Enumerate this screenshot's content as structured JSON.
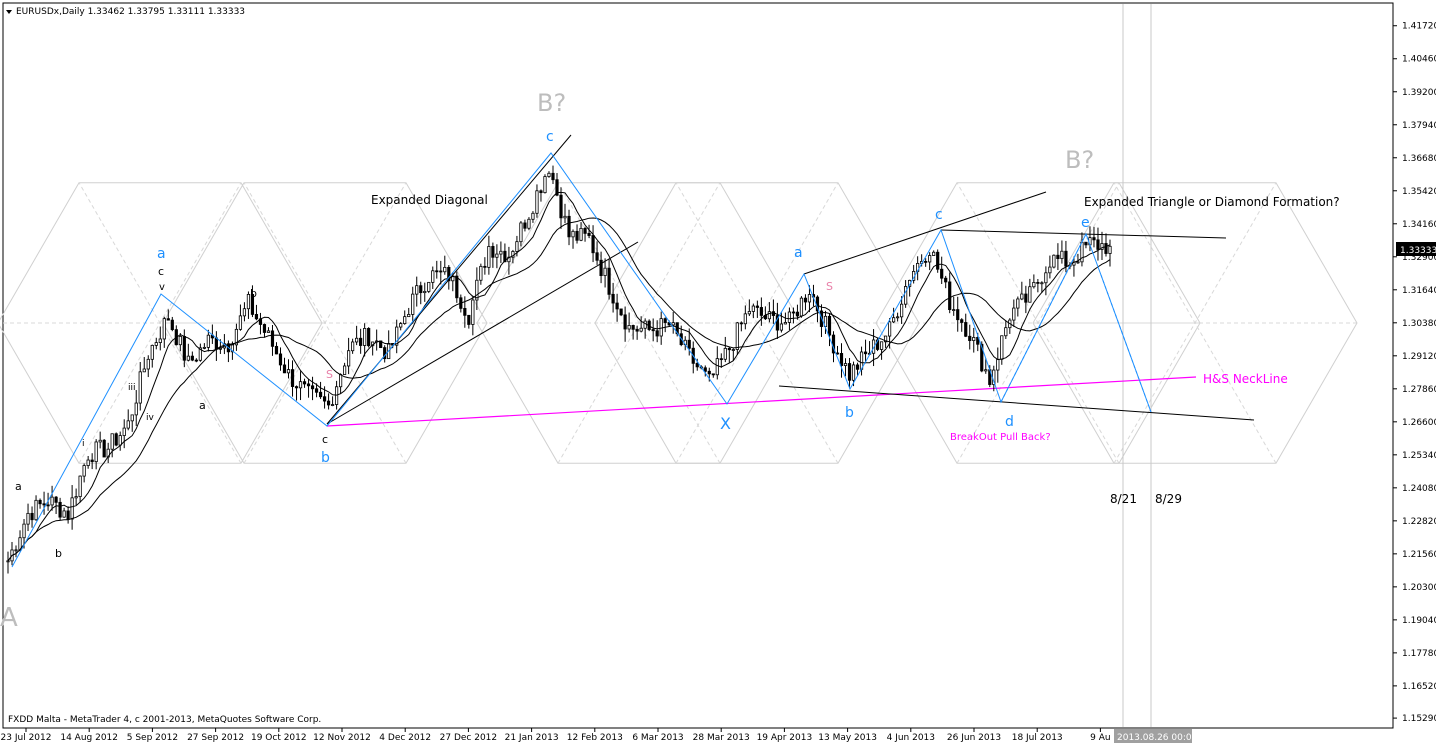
{
  "window": {
    "header": "EURUSDx,Daily  1.33462 1.33795 1.33111 1.33333",
    "footer": "FXDD Malta - MetaTrader 4, c 2001-2013, MetaQuotes Software Corp.",
    "current_price_label": "1.33333",
    "cursor_date_label": "2013.08.26 00:00"
  },
  "colors": {
    "background": "#ffffff",
    "candle": "#000000",
    "wave_blue": "#1e90ff",
    "neckline": "#ff00ff",
    "grid_gray": "#c8c8c8",
    "label_gray": "#bdbdbd",
    "shoulder_pink": "#e87fa8"
  },
  "chart_data": {
    "type": "candlestick",
    "symbol": "EURUSDx",
    "timeframe": "Daily",
    "ohlc": {
      "open": 1.33462,
      "high": 1.33795,
      "low": 1.33111,
      "close": 1.33333
    },
    "ylim": [
      1.1495,
      1.4255
    ],
    "y_ticks": [
      "1.41720",
      "1.40460",
      "1.39200",
      "1.37940",
      "1.36680",
      "1.35420",
      "1.34160",
      "1.32900",
      "1.31640",
      "1.30380",
      "1.29120",
      "1.27860",
      "1.26600",
      "1.25340",
      "1.24080",
      "1.22820",
      "1.21560",
      "1.20300",
      "1.19040",
      "1.17780",
      "1.16520",
      "1.15290"
    ],
    "x_ticks": [
      "23 Jul 2012",
      "14 Aug 2012",
      "5 Sep 2012",
      "27 Sep 2012",
      "19 Oct 2012",
      "12 Nov 2012",
      "4 Dec 2012",
      "27 Dec 2012",
      "21 Jan 2013",
      "12 Feb 2013",
      "6 Mar 2013",
      "28 Mar 2013",
      "19 Apr 2013",
      "13 May 2013",
      "4 Jun 2013",
      "26 Jun 2013",
      "18 Jul 2013",
      "9 Au"
    ],
    "series": [
      {
        "kind": "close",
        "points": [
          [
            "2012-07-23",
            1.213
          ],
          [
            "2012-07-30",
            1.231
          ],
          [
            "2012-08-06",
            1.236
          ],
          [
            "2012-08-13",
            1.231
          ],
          [
            "2012-08-20",
            1.254
          ],
          [
            "2012-08-27",
            1.256
          ],
          [
            "2012-09-03",
            1.265
          ],
          [
            "2012-09-10",
            1.292
          ],
          [
            "2012-09-17",
            1.306
          ],
          [
            "2012-09-24",
            1.288
          ],
          [
            "2012-10-01",
            1.297
          ],
          [
            "2012-10-08",
            1.296
          ],
          [
            "2012-10-15",
            1.311
          ],
          [
            "2012-10-22",
            1.298
          ],
          [
            "2012-10-29",
            1.284
          ],
          [
            "2012-11-05",
            1.276
          ],
          [
            "2012-11-12",
            1.272
          ],
          [
            "2012-11-19",
            1.294
          ],
          [
            "2012-11-26",
            1.299
          ],
          [
            "2012-12-03",
            1.292
          ],
          [
            "2012-12-10",
            1.31
          ],
          [
            "2012-12-17",
            1.322
          ],
          [
            "2012-12-24",
            1.322
          ],
          [
            "2012-12-31",
            1.307
          ],
          [
            "2013-01-07",
            1.333
          ],
          [
            "2013-01-14",
            1.33
          ],
          [
            "2013-01-21",
            1.346
          ],
          [
            "2013-01-28",
            1.364
          ],
          [
            "2013-02-04",
            1.337
          ],
          [
            "2013-02-11",
            1.336
          ],
          [
            "2013-02-18",
            1.318
          ],
          [
            "2013-02-25",
            1.302
          ],
          [
            "2013-03-04",
            1.301
          ],
          [
            "2013-03-11",
            1.303
          ],
          [
            "2013-03-18",
            1.291
          ],
          [
            "2013-03-25",
            1.281
          ],
          [
            "2013-04-01",
            1.294
          ],
          [
            "2013-04-08",
            1.309
          ],
          [
            "2013-04-15",
            1.305
          ],
          [
            "2013-04-22",
            1.304
          ],
          [
            "2013-04-29",
            1.317
          ],
          [
            "2013-05-06",
            1.299
          ],
          [
            "2013-05-13",
            1.284
          ],
          [
            "2013-05-20",
            1.293
          ],
          [
            "2013-05-27",
            1.301
          ],
          [
            "2013-06-03",
            1.322
          ],
          [
            "2013-06-10",
            1.333
          ],
          [
            "2013-06-17",
            1.312
          ],
          [
            "2013-06-24",
            1.3
          ],
          [
            "2013-07-01",
            1.282
          ],
          [
            "2013-07-08",
            1.307
          ],
          [
            "2013-07-15",
            1.314
          ],
          [
            "2013-07-22",
            1.328
          ],
          [
            "2013-07-29",
            1.327
          ],
          [
            "2013-08-05",
            1.334
          ],
          [
            "2013-08-12",
            1.333
          ]
        ]
      }
    ]
  },
  "annotations": {
    "corner_letter": "A",
    "title_expanded_diagonal": "Expanded Diagonal",
    "title_expanded_triangle": "Expanded Triangle or Diamond Formation?",
    "b_question_1": "B?",
    "b_question_2": "B?",
    "hs_neckline": "H&S NeckLine",
    "breakout_pullback": "BreakOut Pull Back?",
    "date_821": "8/21",
    "date_829": "8/29",
    "wave_a1": "a",
    "wave_c_small": "c",
    "wave_v": "v",
    "wave_iv": "iv",
    "wave_iii": "iii",
    "wave_i": "i",
    "wave_a_black": "a",
    "wave_b_black": "b",
    "wave_a_low": "a",
    "wave_b_black2": "b",
    "wave_c_black": "c",
    "wave_b_blue1": "b",
    "wave_c_blue1": "c",
    "wave_x": "X",
    "wave_a_blue2": "a",
    "wave_b_blue2": "b",
    "wave_c_blue2": "c",
    "wave_d_blue": "d",
    "wave_e_blue": "e",
    "shoulder_1": "S",
    "shoulder_2": "S"
  }
}
